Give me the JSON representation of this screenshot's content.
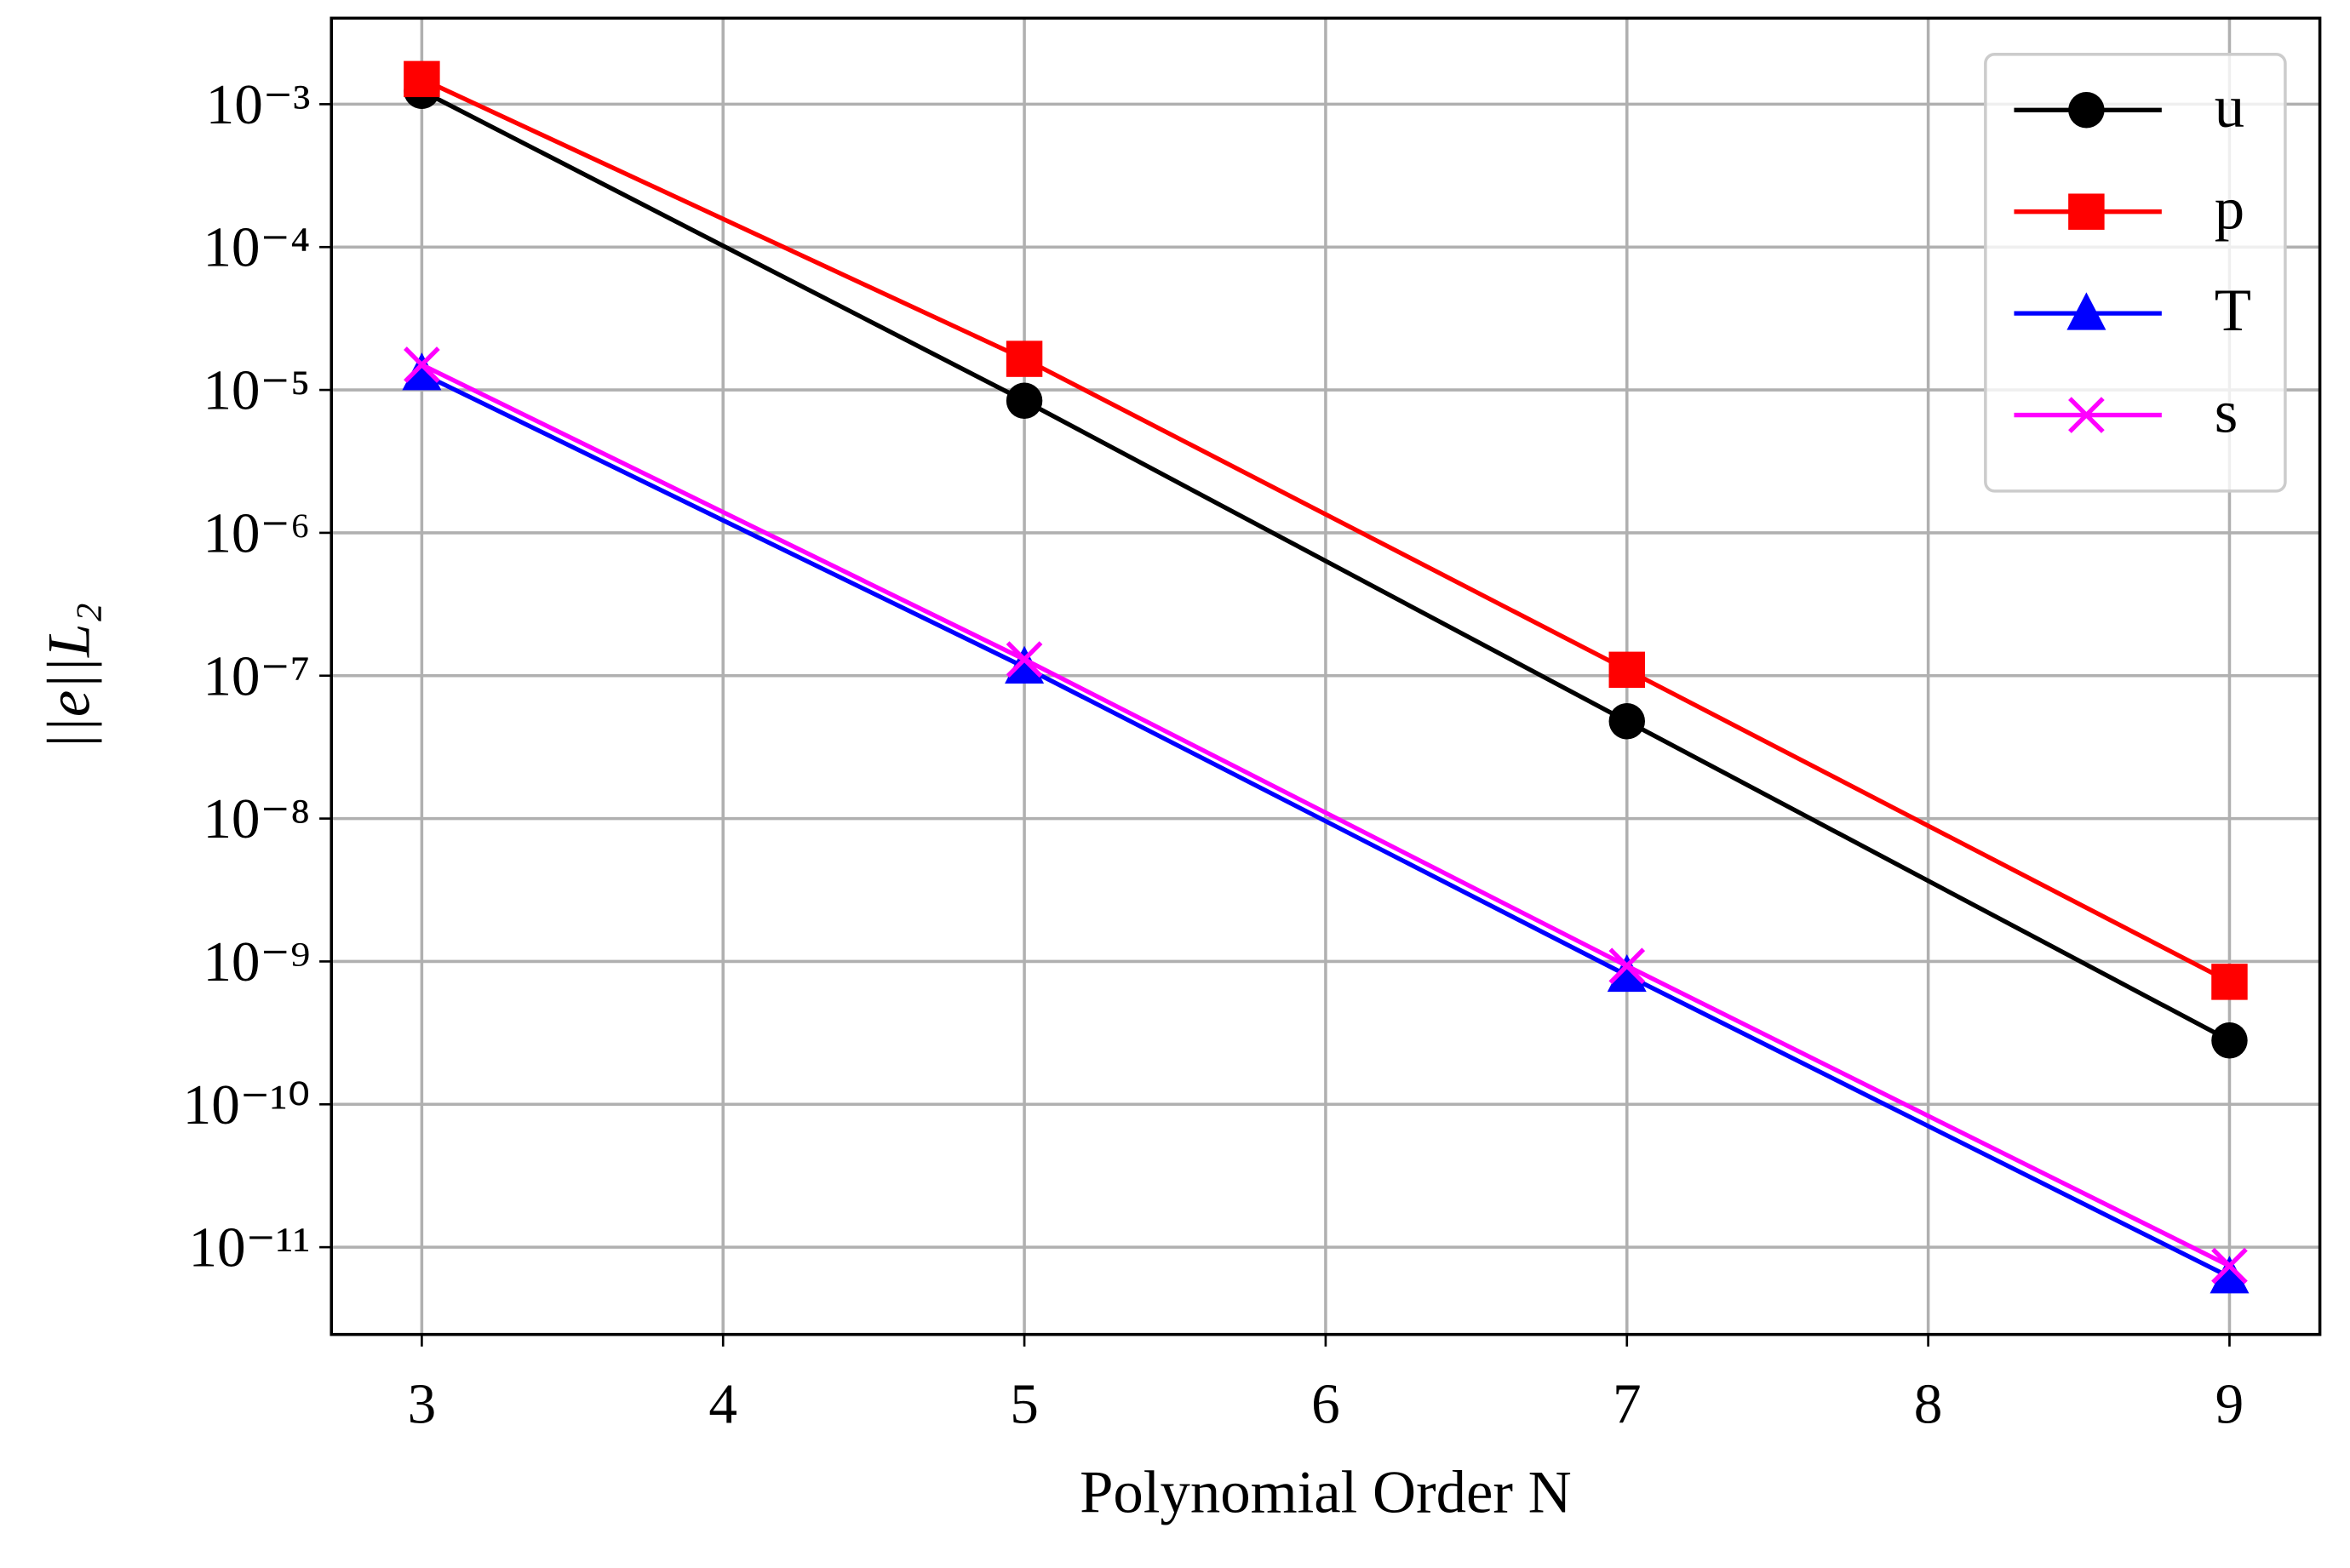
{
  "chart_data": {
    "type": "line",
    "x_label": "Polynomial Order N",
    "y_label": "||e||L₂",
    "x": [
      3,
      5,
      7,
      9
    ],
    "series": [
      {
        "name": "u",
        "color": "#000000",
        "marker": "circle",
        "values": [
          0.00124,
          8.4e-06,
          4.8e-08,
          2.8e-10
        ]
      },
      {
        "name": "p",
        "color": "#ff0000",
        "marker": "square",
        "values": [
          0.0015,
          1.65e-05,
          1.1e-07,
          7.2e-10
        ]
      },
      {
        "name": "T",
        "color": "#0000ff",
        "marker": "triangle",
        "values": [
          1.3e-05,
          1.15e-07,
          8e-10,
          6.2e-12
        ]
      },
      {
        "name": "s",
        "color": "#ff00ff",
        "marker": "x",
        "values": [
          1.5e-05,
          1.3e-07,
          9.3e-10,
          7.4e-12
        ]
      }
    ],
    "xlim": [
      2.7,
      9.3
    ],
    "xticks": [
      3,
      4,
      5,
      6,
      7,
      8,
      9
    ],
    "ylim": [
      2.45e-12,
      0.004
    ],
    "yscale": "log",
    "yticks": [
      {
        "value": 0.001,
        "label": "10⁻³"
      },
      {
        "value": 0.0001,
        "label": "10⁻⁴"
      },
      {
        "value": 1e-05,
        "label": "10⁻⁵"
      },
      {
        "value": 1e-06,
        "label": "10⁻⁶"
      },
      {
        "value": 1e-07,
        "label": "10⁻⁷"
      },
      {
        "value": 1e-08,
        "label": "10⁻⁸"
      },
      {
        "value": 1e-09,
        "label": "10⁻⁹"
      },
      {
        "value": 1e-10,
        "label": "10⁻¹⁰"
      },
      {
        "value": 1e-11,
        "label": "10⁻¹¹"
      }
    ],
    "grid": true,
    "legend": "upper right"
  }
}
